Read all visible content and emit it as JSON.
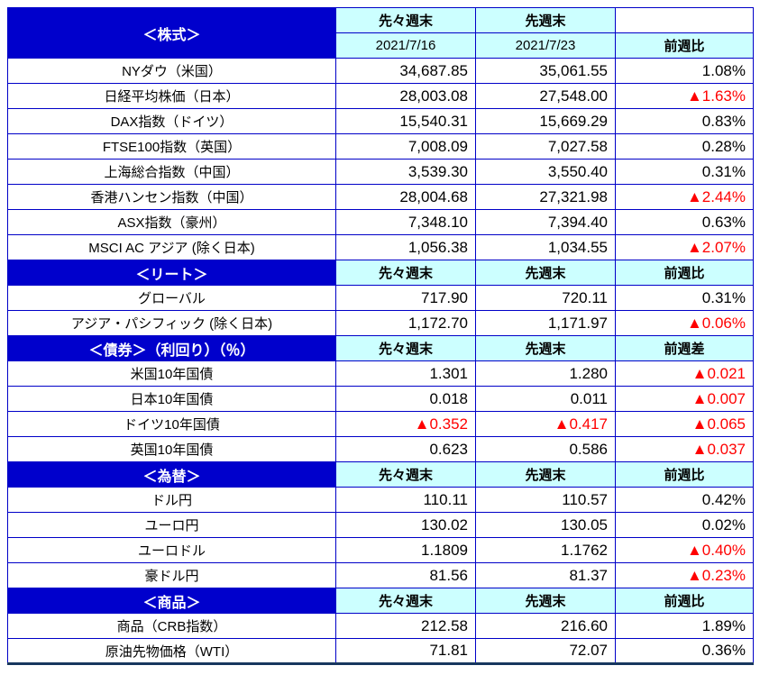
{
  "table": {
    "colors": {
      "section_header_bg": "#0000cc",
      "section_header_text": "#ffffff",
      "column_header_bg": "#ccffff",
      "grid_border": "#0000c8",
      "negative_value": "#ff0000"
    },
    "sections": [
      {
        "id": "stocks",
        "title": "＜株式＞",
        "headers": [
          "先々週末",
          "先週末",
          "前週比"
        ],
        "dates": [
          "2021/7/16",
          "2021/7/23"
        ],
        "rows": [
          {
            "label": "NYダウ（米国）",
            "values": [
              "34,687.85",
              "35,061.55",
              "1.08%"
            ]
          },
          {
            "label": "日経平均株価（日本）",
            "values": [
              "28,003.08",
              "27,548.00",
              "▲1.63%"
            ]
          },
          {
            "label": "DAX指数（ドイツ）",
            "values": [
              "15,540.31",
              "15,669.29",
              "0.83%"
            ]
          },
          {
            "label": "FTSE100指数（英国）",
            "values": [
              "7,008.09",
              "7,027.58",
              "0.28%"
            ]
          },
          {
            "label": "上海総合指数（中国）",
            "values": [
              "3,539.30",
              "3,550.40",
              "0.31%"
            ]
          },
          {
            "label": "香港ハンセン指数（中国）",
            "values": [
              "28,004.68",
              "27,321.98",
              "▲2.44%"
            ]
          },
          {
            "label": "ASX指数（豪州）",
            "values": [
              "7,348.10",
              "7,394.40",
              "0.63%"
            ]
          },
          {
            "label": "MSCI AC アジア (除く日本)",
            "values": [
              "1,056.38",
              "1,034.55",
              "▲2.07%"
            ]
          }
        ]
      },
      {
        "id": "reit",
        "title": "＜リート＞",
        "headers": [
          "先々週末",
          "先週末",
          "前週比"
        ],
        "rows": [
          {
            "label": "グローバル",
            "values": [
              "717.90",
              "720.11",
              "0.31%"
            ]
          },
          {
            "label": "アジア・パシフィック (除く日本)",
            "values": [
              "1,172.70",
              "1,171.97",
              "▲0.06%"
            ]
          }
        ]
      },
      {
        "id": "bonds",
        "title": "＜債券＞（利回り）（％）",
        "headers": [
          "先々週末",
          "先週末",
          "前週差"
        ],
        "rows": [
          {
            "label": "米国10年国債",
            "values": [
              "1.301",
              "1.280",
              "▲0.021"
            ]
          },
          {
            "label": "日本10年国債",
            "values": [
              "0.018",
              "0.011",
              "▲0.007"
            ]
          },
          {
            "label": "ドイツ10年国債",
            "values": [
              "▲0.352",
              "▲0.417",
              "▲0.065"
            ]
          },
          {
            "label": "英国10年国債",
            "values": [
              "0.623",
              "0.586",
              "▲0.037"
            ]
          }
        ]
      },
      {
        "id": "fx",
        "title": "＜為替＞",
        "headers": [
          "先々週末",
          "先週末",
          "前週比"
        ],
        "rows": [
          {
            "label": "ドル円",
            "values": [
              "110.11",
              "110.57",
              "0.42%"
            ]
          },
          {
            "label": "ユーロ円",
            "values": [
              "130.02",
              "130.05",
              "0.02%"
            ]
          },
          {
            "label": "ユーロドル",
            "values": [
              "1.1809",
              "1.1762",
              "▲0.40%"
            ]
          },
          {
            "label": "豪ドル円",
            "values": [
              "81.56",
              "81.37",
              "▲0.23%"
            ]
          }
        ]
      },
      {
        "id": "commodities",
        "title": "＜商品＞",
        "headers": [
          "先々週末",
          "先週末",
          "前週比"
        ],
        "rows": [
          {
            "label": "商品（CRB指数）",
            "values": [
              "212.58",
              "216.60",
              "1.89%"
            ]
          },
          {
            "label": "原油先物価格（WTI）",
            "values": [
              "71.81",
              "72.07",
              "0.36%"
            ]
          }
        ]
      }
    ]
  }
}
